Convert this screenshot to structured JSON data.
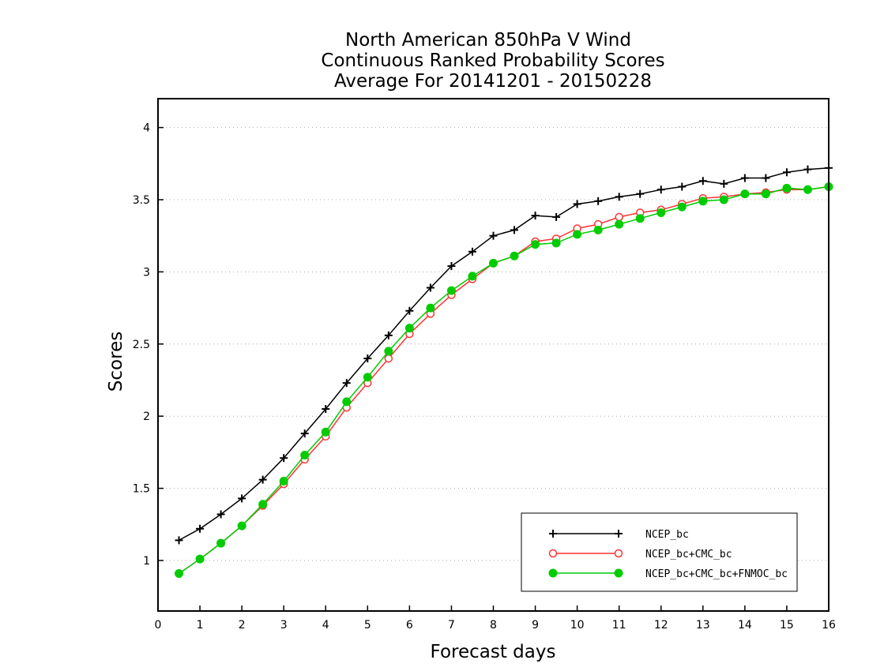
{
  "chart_data": {
    "type": "line",
    "title_lines": [
      "North American 850hPa V Wind",
      "Continuous Ranked Probability Scores",
      "Average For 20141201 - 20150228"
    ],
    "xlabel": "Forecast days",
    "ylabel": "Scores",
    "xlim": [
      0,
      16
    ],
    "ylim": [
      0.65,
      4.2
    ],
    "xticks": [
      "0",
      "1",
      "2",
      "3",
      "4",
      "5",
      "6",
      "7",
      "8",
      "9",
      "10",
      "11",
      "12",
      "13",
      "14",
      "15",
      "16"
    ],
    "yticks": [
      "1",
      "1.5",
      "2",
      "2.5",
      "3",
      "3.5",
      "4"
    ],
    "grid": "horizontal dotted",
    "legend_position": "bottom-right",
    "x": [
      0.5,
      1,
      1.5,
      2,
      2.5,
      3,
      3.5,
      4,
      4.5,
      5,
      5.5,
      6,
      6.5,
      7,
      7.5,
      8,
      8.5,
      9,
      9.5,
      10,
      10.5,
      11,
      11.5,
      12,
      12.5,
      13,
      13.5,
      14,
      14.5,
      15,
      15.5,
      16
    ],
    "series": [
      {
        "name": "NCEP_bc",
        "color": "#000000",
        "marker": "plus",
        "values": [
          1.14,
          1.22,
          1.32,
          1.43,
          1.56,
          1.71,
          1.88,
          2.05,
          2.23,
          2.4,
          2.56,
          2.73,
          2.89,
          3.04,
          3.14,
          3.25,
          3.29,
          3.39,
          3.38,
          3.47,
          3.49,
          3.52,
          3.54,
          3.57,
          3.59,
          3.63,
          3.61,
          3.65,
          3.65,
          3.69,
          3.71,
          3.72
        ]
      },
      {
        "name": "NCEP_bc+CMC_bc",
        "color": "#ff3333",
        "marker": "open-circle",
        "values": [
          0.91,
          1.01,
          1.12,
          1.24,
          1.38,
          1.53,
          1.7,
          1.86,
          2.06,
          2.23,
          2.4,
          2.57,
          2.71,
          2.84,
          2.95,
          3.06,
          3.11,
          3.21,
          3.23,
          3.3,
          3.33,
          3.38,
          3.41,
          3.43,
          3.47,
          3.51,
          3.52,
          3.54,
          3.55,
          3.57,
          3.57,
          3.59
        ]
      },
      {
        "name": "NCEP_bc+CMC_bc+FNMOC_bc",
        "color": "#00cc00",
        "marker": "filled-circle",
        "values": [
          0.91,
          1.01,
          1.12,
          1.24,
          1.39,
          1.55,
          1.73,
          1.89,
          2.1,
          2.27,
          2.45,
          2.61,
          2.75,
          2.87,
          2.97,
          3.06,
          3.11,
          3.19,
          3.2,
          3.26,
          3.29,
          3.33,
          3.37,
          3.41,
          3.45,
          3.49,
          3.5,
          3.54,
          3.54,
          3.58,
          3.57,
          3.59
        ]
      }
    ]
  }
}
